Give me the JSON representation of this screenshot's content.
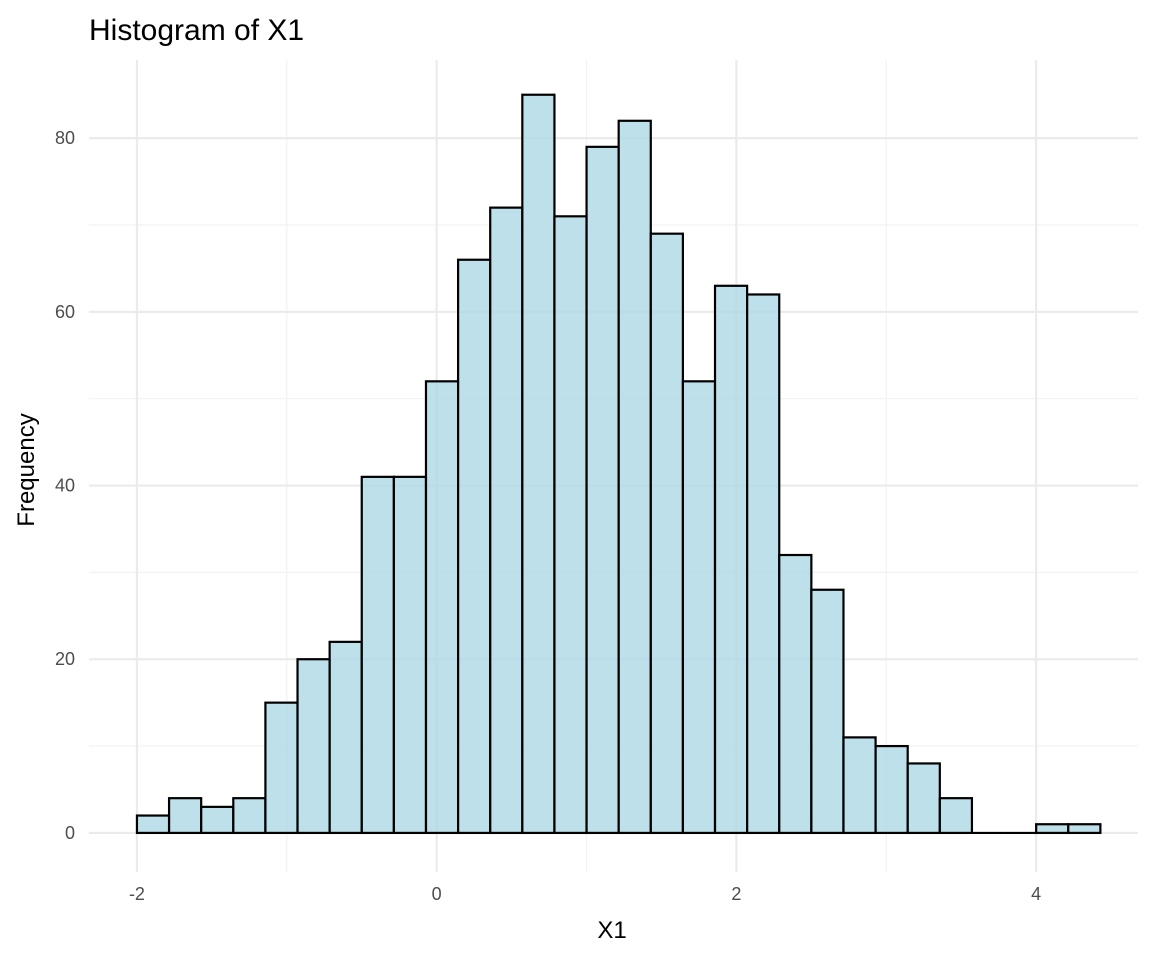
{
  "chart_data": {
    "type": "bar",
    "title": "Histogram of X1",
    "xlabel": "X1",
    "ylabel": "Frequency",
    "bin_width": 0.2143,
    "bin_start": -2.0,
    "values": [
      2,
      4,
      3,
      4,
      15,
      20,
      22,
      41,
      41,
      52,
      66,
      72,
      85,
      71,
      79,
      82,
      69,
      52,
      63,
      62,
      32,
      28,
      11,
      10,
      8,
      4,
      0,
      0,
      1,
      1
    ],
    "xlim": [
      -2.32,
      4.68
    ],
    "ylim": [
      -4.5,
      89
    ],
    "x_ticks": [
      -2,
      0,
      2,
      4
    ],
    "x_tick_labels": [
      "-2",
      "0",
      "2",
      "4"
    ],
    "y_ticks": [
      0,
      20,
      40,
      60,
      80
    ],
    "y_tick_labels": [
      "0",
      "20",
      "40",
      "60",
      "80"
    ],
    "grid": true,
    "fill_color": "#add8e6",
    "fill_opacity": 0.8,
    "outline_color": "#000000"
  }
}
